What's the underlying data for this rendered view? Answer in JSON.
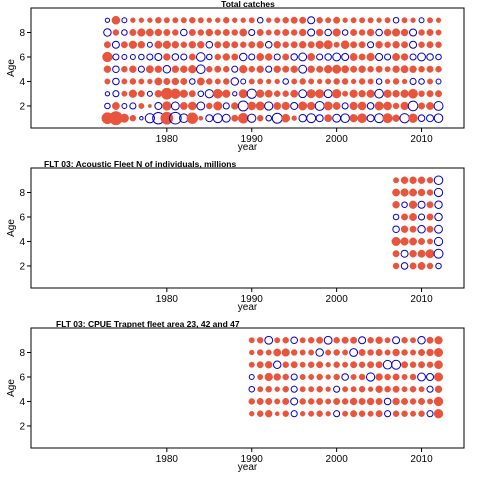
{
  "chart_data": [
    {
      "type": "scatter",
      "title": "Total catches",
      "xlabel": "year",
      "ylabel": "Age",
      "xlim": [
        1964,
        2015
      ],
      "ylim": [
        0.2,
        10
      ],
      "xticks": [
        1980,
        1990,
        2000,
        2010
      ],
      "yticks": [
        2,
        4,
        6,
        8
      ],
      "colors": {
        "positive": "#0000cc",
        "negative": "#e8543c",
        "frame": "#000000"
      },
      "years": [
        1973,
        1974,
        1975,
        1976,
        1977,
        1978,
        1979,
        1980,
        1981,
        1982,
        1983,
        1984,
        1985,
        1986,
        1987,
        1988,
        1989,
        1990,
        1991,
        1992,
        1993,
        1994,
        1995,
        1996,
        1997,
        1998,
        1999,
        2000,
        2001,
        2002,
        2003,
        2004,
        2005,
        2006,
        2007,
        2008,
        2009,
        2010,
        2011,
        2012
      ],
      "ages": [
        1,
        2,
        3,
        4,
        5,
        6,
        7,
        8,
        9
      ],
      "residual_scale": 2.5,
      "residuals": [
        [
          -2.1,
          -3.0,
          -1.2,
          -0.6,
          0.2,
          1.4,
          2.1,
          -2.5,
          2.2,
          1.2,
          -2.0,
          -0.3,
          0.8,
          1.3,
          1.0,
          -0.7,
          -1.7,
          1.1,
          -0.6,
          0.5,
          1.6,
          -1.1,
          -0.4,
          0.9,
          1.3,
          0.8,
          -0.9,
          1.0,
          1.2,
          -1.0,
          -1.4,
          0.8,
          1.3,
          -1.5,
          -0.8,
          1.4,
          -1.3,
          0.7,
          0.8,
          1.2
        ],
        [
          0.5,
          -0.9,
          0.4,
          0.6,
          -0.5,
          -0.2,
          0.8,
          -1.3,
          1.0,
          -0.9,
          -1.1,
          1.0,
          -0.6,
          -1.2,
          0.6,
          -0.8,
          1.6,
          -1.1,
          -1.2,
          1.1,
          -0.9,
          -1.0,
          0.8,
          -1.2,
          -1.0,
          1.3,
          -1.2,
          -0.9,
          0.6,
          -1.0,
          -1.1,
          0.7,
          -1.2,
          -1.1,
          -0.6,
          -1.0,
          1.5,
          -0.7,
          -0.9,
          1.3
        ],
        [
          0.3,
          0.6,
          -0.5,
          -1.0,
          -0.7,
          0.4,
          -0.8,
          -2.1,
          -1.6,
          -1.0,
          -0.7,
          0.5,
          1.1,
          -1.4,
          -1.0,
          0.3,
          -1.2,
          1.4,
          -1.0,
          -0.9,
          -0.6,
          -0.6,
          -0.9,
          1.0,
          -1.2,
          -1.2,
          1.0,
          -1.3,
          -0.5,
          -1.0,
          -0.8,
          -1.0,
          1.2,
          -1.0,
          -0.8,
          -1.0,
          -1.4,
          -0.6,
          -0.7,
          -0.7
        ],
        [
          -0.5,
          0.7,
          -0.5,
          -0.6,
          -0.5,
          -0.4,
          -0.9,
          -0.7,
          -0.8,
          -0.7,
          0.5,
          -0.9,
          -0.6,
          -0.5,
          -0.6,
          0.9,
          0.4,
          -0.5,
          -0.5,
          -0.4,
          -0.4,
          0.5,
          -0.5,
          -0.6,
          -0.5,
          -0.4,
          -0.5,
          -0.6,
          -0.6,
          -0.4,
          -0.6,
          -0.5,
          0.5,
          -0.4,
          -0.6,
          -0.4,
          0.6,
          0.5,
          -0.5,
          0.4
        ],
        [
          -0.8,
          0.7,
          -0.6,
          -0.8,
          0.6,
          -0.9,
          -0.8,
          0.9,
          -0.8,
          -0.8,
          -1.0,
          1.2,
          -0.6,
          -0.7,
          -0.6,
          0.6,
          -1.0,
          -0.6,
          -0.8,
          0.6,
          -0.8,
          -0.7,
          -0.8,
          1.0,
          -0.8,
          -0.7,
          -1.0,
          -1.2,
          -0.9,
          -0.7,
          -0.8,
          -0.6,
          -0.7,
          -0.5,
          -0.8,
          -0.9,
          -0.8,
          -0.6,
          -0.7,
          -0.6
        ],
        [
          -1.6,
          0.6,
          0.4,
          0.4,
          0.5,
          0.6,
          0.8,
          -0.8,
          0.7,
          0.6,
          -0.7,
          1.2,
          0.5,
          -0.6,
          -0.8,
          -0.7,
          0.9,
          0.6,
          -0.9,
          -0.8,
          0.6,
          -0.7,
          0.7,
          1.0,
          -0.9,
          0.6,
          0.7,
          1.0,
          0.8,
          -0.9,
          -0.7,
          -1.0,
          0.8,
          0.6,
          -0.9,
          -0.8,
          0.6,
          1.0,
          0.7,
          0.5
        ],
        [
          -0.7,
          0.8,
          -0.7,
          -1.0,
          -0.8,
          0.4,
          -0.9,
          -1.0,
          -0.8,
          -0.6,
          -0.8,
          -0.8,
          0.7,
          -0.7,
          -0.8,
          -0.7,
          -0.6,
          -0.7,
          -0.8,
          0.7,
          -0.8,
          -0.6,
          -0.7,
          -0.8,
          -0.7,
          -1.0,
          -1.2,
          -0.5,
          -1.1,
          -0.7,
          -0.7,
          0.6,
          -0.8,
          -0.6,
          -0.8,
          -0.7,
          0.8,
          -0.6,
          -0.7,
          -0.6
        ],
        [
          0.9,
          -0.6,
          0.5,
          -0.7,
          -1.0,
          -0.9,
          -0.8,
          -0.7,
          -0.6,
          0.7,
          -0.7,
          -0.6,
          -0.8,
          -0.6,
          -0.7,
          -0.6,
          -0.9,
          0.6,
          -0.7,
          -0.5,
          -0.6,
          -0.7,
          -0.6,
          -0.8,
          0.8,
          -0.8,
          0.7,
          -1.0,
          0.5,
          -0.7,
          -0.6,
          -0.8,
          0.7,
          -0.8,
          -1.0,
          -0.8,
          0.8,
          -0.6,
          -0.7,
          -0.5
        ],
        [
          0.3,
          -1.1,
          0.4,
          -0.4,
          -0.4,
          -0.4,
          -0.6,
          -0.5,
          -0.5,
          -0.5,
          -0.6,
          -0.5,
          -0.4,
          -0.4,
          -0.6,
          -0.4,
          -0.4,
          -0.5,
          0.5,
          -0.4,
          -0.5,
          -0.6,
          -0.7,
          -0.7,
          0.8,
          -0.6,
          -0.5,
          -0.7,
          -0.4,
          -0.5,
          -0.5,
          -0.5,
          -0.4,
          -0.5,
          0.5,
          -0.5,
          -0.4,
          0.4,
          -0.5,
          -0.4
        ]
      ]
    },
    {
      "type": "scatter",
      "title": "FLT 03: Acoustic Fleet   N of individuals, millions",
      "xlabel": "year",
      "ylabel": "Age",
      "xlim": [
        1964,
        2015
      ],
      "ylim": [
        0.2,
        10
      ],
      "xticks": [
        1980,
        1990,
        2000,
        2010
      ],
      "yticks": [
        2,
        4,
        6,
        8
      ],
      "colors": {
        "positive": "#0000cc",
        "negative": "#e8543c",
        "frame": "#000000"
      },
      "years": [
        2007,
        2008,
        2009,
        2010,
        2011,
        2012
      ],
      "ages": [
        2,
        3,
        4,
        5,
        6,
        7,
        8,
        9
      ],
      "residual_scale": 2.5,
      "residuals": [
        [
          -0.6,
          0.7,
          -0.7,
          -0.9,
          -0.6,
          0.5
        ],
        [
          -0.7,
          0.8,
          -0.8,
          -0.9,
          -1.2,
          1.3
        ],
        [
          -1.2,
          -1.0,
          -0.9,
          -0.7,
          -0.5,
          1.1
        ],
        [
          0.7,
          -0.8,
          -0.7,
          0.9,
          -0.7,
          1.0
        ],
        [
          0.5,
          -0.7,
          -0.9,
          0.6,
          -0.7,
          0.9
        ],
        [
          -0.8,
          0.5,
          -1.0,
          0.8,
          -0.7,
          0.9
        ],
        [
          -0.9,
          -1.0,
          -0.9,
          -0.8,
          -0.6,
          1.1
        ],
        [
          -0.5,
          -0.8,
          -0.8,
          -0.8,
          -0.6,
          1.2
        ]
      ]
    },
    {
      "type": "scatter",
      "title": "FLT 03: CPUE Trapnet fleet area 23, 42 and 47",
      "xlabel": "year",
      "ylabel": "Age",
      "xlim": [
        1964,
        2015
      ],
      "ylim": [
        0.2,
        10
      ],
      "xticks": [
        1980,
        1990,
        2000,
        2010
      ],
      "yticks": [
        2,
        4,
        6,
        8
      ],
      "colors": {
        "positive": "#0000cc",
        "negative": "#e8543c",
        "frame": "#000000"
      },
      "years": [
        1990,
        1991,
        1992,
        1993,
        1994,
        1995,
        1996,
        1997,
        1998,
        1999,
        2000,
        2001,
        2002,
        2003,
        2004,
        2005,
        2006,
        2007,
        2008,
        2009,
        2010,
        2011,
        2012
      ],
      "ages": [
        3,
        4,
        5,
        6,
        7,
        8,
        9
      ],
      "residual_scale": 2.5,
      "residuals": [
        [
          -0.4,
          -0.6,
          -0.8,
          -0.3,
          -0.6,
          0.6,
          -0.4,
          -0.5,
          -0.6,
          -0.4,
          0.6,
          -0.5,
          -0.7,
          -0.6,
          -0.5,
          -0.7,
          0.6,
          -0.6,
          -0.6,
          -0.5,
          -0.6,
          0.6,
          -1.3
        ],
        [
          -0.6,
          -0.7,
          -0.7,
          -0.5,
          -0.7,
          0.8,
          -0.6,
          -0.6,
          -0.7,
          -0.5,
          -0.7,
          -0.6,
          -0.8,
          -0.7,
          -0.8,
          -0.7,
          0.7,
          -0.8,
          -0.7,
          -0.6,
          -0.7,
          -0.5,
          -1.3
        ],
        [
          0.5,
          -0.5,
          -0.6,
          -0.4,
          -0.6,
          0.6,
          -0.5,
          -0.5,
          -0.6,
          -0.4,
          0.6,
          -0.5,
          -0.5,
          -0.6,
          -0.4,
          -0.8,
          -0.6,
          -0.7,
          -0.5,
          -0.6,
          -0.5,
          0.6,
          -0.8
        ],
        [
          0.4,
          -0.5,
          -1.0,
          -0.8,
          -0.6,
          0.6,
          -0.5,
          -0.5,
          -0.6,
          -0.4,
          -0.6,
          0.7,
          -0.5,
          -0.6,
          1.1,
          -0.8,
          -0.6,
          -0.7,
          -0.5,
          -0.6,
          1.0,
          0.8,
          -1.2
        ],
        [
          -0.5,
          -0.7,
          -0.8,
          0.9,
          -0.6,
          -0.7,
          -0.5,
          -0.6,
          -0.7,
          -0.4,
          -0.6,
          -0.5,
          -0.7,
          -0.6,
          -0.7,
          -0.7,
          1.2,
          1.3,
          -0.7,
          -0.6,
          -0.7,
          -0.6,
          -1.1
        ],
        [
          -0.4,
          -0.6,
          -0.5,
          -0.9,
          -1.0,
          -0.6,
          -0.5,
          -0.5,
          0.9,
          -0.5,
          -0.6,
          -0.5,
          1.0,
          -0.7,
          -0.6,
          -0.7,
          -0.5,
          -0.8,
          -0.6,
          -0.5,
          -0.7,
          -0.8,
          -1.2
        ],
        [
          -0.5,
          -0.6,
          1.0,
          -0.5,
          -0.6,
          0.7,
          -0.5,
          -0.6,
          -0.7,
          1.0,
          -0.6,
          -0.7,
          -0.7,
          0.8,
          -0.6,
          -0.8,
          -0.5,
          0.8,
          -0.6,
          -0.5,
          0.9,
          -0.7,
          -1.0
        ]
      ]
    }
  ]
}
